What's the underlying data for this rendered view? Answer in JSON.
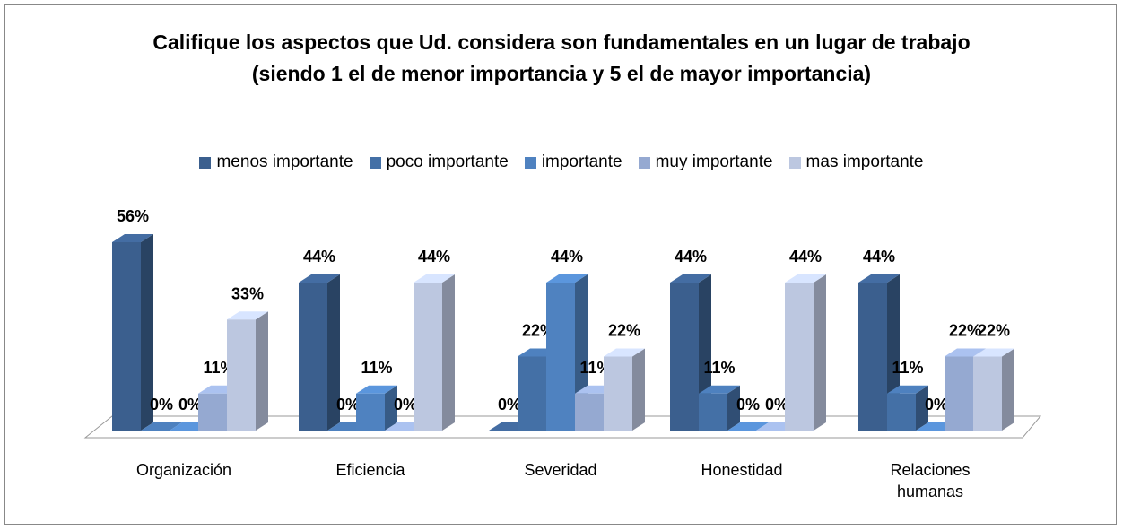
{
  "chart_data": {
    "type": "bar3d",
    "title": "Califique los aspectos que Ud. considera son fundamentales en un lugar de trabajo (siendo 1 el de menor importancia y 5 el de mayor importancia)",
    "categories": [
      "Organización",
      "Eficiencia",
      "Severidad",
      "Honestidad",
      "Relaciones humanas"
    ],
    "legend": "top",
    "series": [
      {
        "name": "menos importante",
        "color": "#3b5f8e",
        "values": [
          56,
          44,
          0,
          44,
          44
        ],
        "value_labels": [
          "56%",
          "44%",
          "0%",
          "44%",
          "44%"
        ]
      },
      {
        "name": "poco importante",
        "color": "#4470a6",
        "values": [
          0,
          0,
          22,
          11,
          11
        ],
        "value_labels": [
          "0%",
          "0%",
          "22%",
          "11%",
          "11%"
        ]
      },
      {
        "name": "importante",
        "color": "#4f82c0",
        "values": [
          0,
          11,
          44,
          0,
          0
        ],
        "value_labels": [
          "0%",
          "11%",
          "44%",
          "0%",
          "0%"
        ]
      },
      {
        "name": "muy importante",
        "color": "#95a9d1",
        "values": [
          11,
          0,
          11,
          0,
          22
        ],
        "value_labels": [
          "11%",
          "0%",
          "11%",
          "0%",
          "22%"
        ]
      },
      {
        "name": "mas importante",
        "color": "#bcc7e0",
        "values": [
          33,
          44,
          22,
          44,
          22
        ],
        "value_labels": [
          "33%",
          "44%",
          "22%",
          "44%",
          "22%"
        ]
      }
    ]
  }
}
